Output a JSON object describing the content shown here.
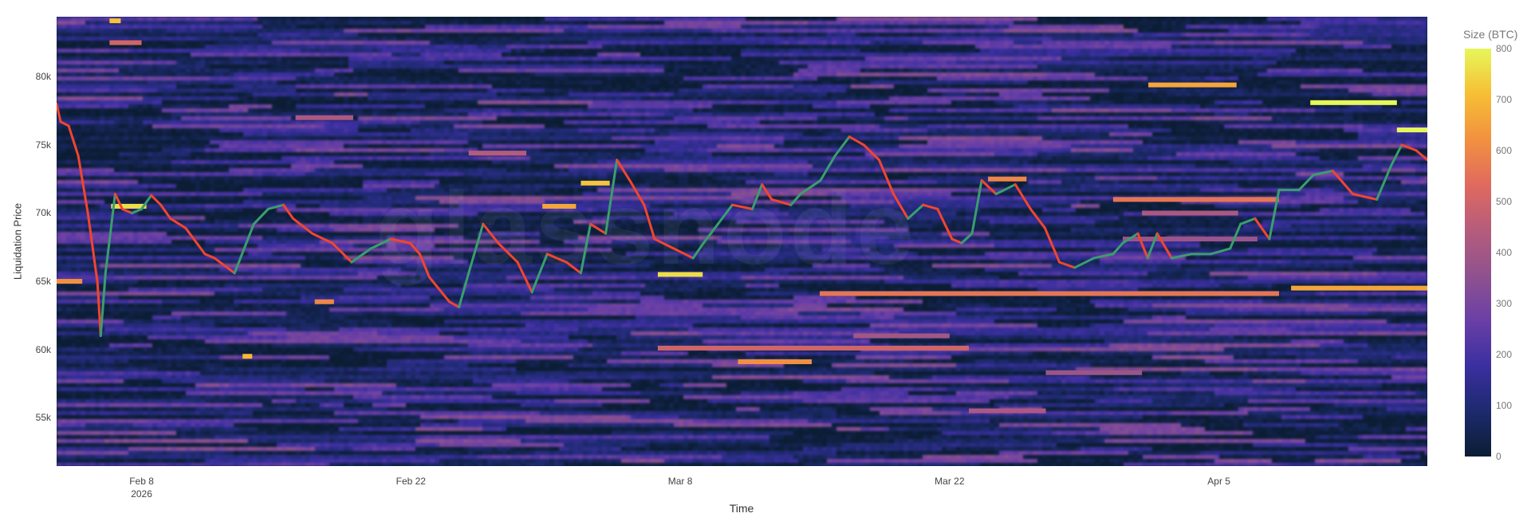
{
  "chart_data": {
    "type": "heatmap",
    "xlabel": "Time",
    "ylabel": "Liquidation Price",
    "colorbar": {
      "title": "Size (BTC)",
      "range": [
        0,
        800
      ],
      "ticks": [
        "0",
        "100",
        "200",
        "300",
        "400",
        "500",
        "600",
        "700",
        "800"
      ],
      "colors": [
        "#0b1d33",
        "#1d2a6e",
        "#3b2fa0",
        "#6a3fa6",
        "#8f528e",
        "#b65c7c",
        "#e06a5e",
        "#f2913f",
        "#f6bf35",
        "#e6f75a"
      ]
    },
    "xlim": [
      "2026-02-03T14:00:00Z",
      "2026-04-15T20:00:00Z"
    ],
    "ylim": [
      51450,
      84400
    ],
    "y_ticks": [
      {
        "value": 55000,
        "label": "55k"
      },
      {
        "value": 60000,
        "label": "60k"
      },
      {
        "value": 65000,
        "label": "65k"
      },
      {
        "value": 70000,
        "label": "70k"
      },
      {
        "value": 75000,
        "label": "75k"
      },
      {
        "value": 80000,
        "label": "80k"
      }
    ],
    "x_ticks": [
      {
        "value": "2026-02-08",
        "label": "Feb 8",
        "sublabel": "2026"
      },
      {
        "value": "2026-02-22",
        "label": "Feb 22"
      },
      {
        "value": "2026-03-08",
        "label": "Mar 8"
      },
      {
        "value": "2026-03-22",
        "label": "Mar 22"
      },
      {
        "value": "2026-04-05",
        "label": "Apr 5"
      }
    ],
    "bands": [
      {
        "price": 64100,
        "start": "2026-03-15T06:00:00Z",
        "end": "2026-04-08T03:00:00Z",
        "size": 560
      },
      {
        "price": 64500,
        "start": "2026-04-08T18:00:00Z",
        "end": "2026-04-15T20:00:00Z",
        "size": 660
      },
      {
        "price": 60100,
        "start": "2026-03-06T20:00:00Z",
        "end": "2026-03-23T00:00:00Z",
        "size": 500
      },
      {
        "price": 59100,
        "start": "2026-03-11T00:00:00Z",
        "end": "2026-03-14T20:00:00Z",
        "size": 620
      },
      {
        "price": 65500,
        "start": "2026-03-06T20:00:00Z",
        "end": "2026-03-09T04:00:00Z",
        "size": 760
      },
      {
        "price": 78100,
        "start": "2026-04-09T18:00:00Z",
        "end": "2026-04-14T06:00:00Z",
        "size": 800
      },
      {
        "price": 76100,
        "start": "2026-04-14T06:00:00Z",
        "end": "2026-04-15T20:00:00Z",
        "size": 800
      },
      {
        "price": 79400,
        "start": "2026-04-01T08:00:00Z",
        "end": "2026-04-05T22:00:00Z",
        "size": 660
      },
      {
        "price": 71000,
        "start": "2026-03-30T12:00:00Z",
        "end": "2026-04-08T03:00:00Z",
        "size": 560
      },
      {
        "price": 70000,
        "start": "2026-04-01T00:00:00Z",
        "end": "2026-04-06T00:00:00Z",
        "size": 420
      },
      {
        "price": 68100,
        "start": "2026-03-31T00:00:00Z",
        "end": "2026-04-07T00:00:00Z",
        "size": 380
      },
      {
        "price": 70500,
        "start": "2026-02-06T10:00:00Z",
        "end": "2026-02-08T06:00:00Z",
        "size": 760
      },
      {
        "price": 65000,
        "start": "2026-02-03T14:00:00Z",
        "end": "2026-02-04T22:00:00Z",
        "size": 620
      },
      {
        "price": 72200,
        "start": "2026-03-02T20:00:00Z",
        "end": "2026-03-04T08:00:00Z",
        "size": 720
      },
      {
        "price": 70500,
        "start": "2026-02-28T20:00:00Z",
        "end": "2026-03-02T14:00:00Z",
        "size": 660
      },
      {
        "price": 84100,
        "start": "2026-02-06T08:00:00Z",
        "end": "2026-02-06T22:00:00Z",
        "size": 720
      },
      {
        "price": 82500,
        "start": "2026-02-06T08:00:00Z",
        "end": "2026-02-08T00:00:00Z",
        "size": 500
      },
      {
        "price": 77000,
        "start": "2026-02-16T00:00:00Z",
        "end": "2026-02-19T00:00:00Z",
        "size": 420
      },
      {
        "price": 74400,
        "start": "2026-02-25T00:00:00Z",
        "end": "2026-02-28T00:00:00Z",
        "size": 440
      },
      {
        "price": 72500,
        "start": "2026-03-24T00:00:00Z",
        "end": "2026-03-26T00:00:00Z",
        "size": 600
      },
      {
        "price": 61000,
        "start": "2026-03-17T00:00:00Z",
        "end": "2026-03-22T00:00:00Z",
        "size": 400
      },
      {
        "price": 55500,
        "start": "2026-03-23T00:00:00Z",
        "end": "2026-03-27T00:00:00Z",
        "size": 420
      },
      {
        "price": 58300,
        "start": "2026-03-27T00:00:00Z",
        "end": "2026-04-01T00:00:00Z",
        "size": 380
      },
      {
        "price": 59500,
        "start": "2026-02-13T06:00:00Z",
        "end": "2026-02-13T18:00:00Z",
        "size": 700
      },
      {
        "price": 63500,
        "start": "2026-02-17T00:00:00Z",
        "end": "2026-02-18T00:00:00Z",
        "size": 600
      }
    ],
    "price_series": [
      [
        "2026-02-03T14:00:00Z",
        78000
      ],
      [
        "2026-02-03T19:00:00Z",
        76700
      ],
      [
        "2026-02-04T05:00:00Z",
        76400
      ],
      [
        "2026-02-04T17:00:00Z",
        74200
      ],
      [
        "2026-02-05T05:00:00Z",
        70000
      ],
      [
        "2026-02-05T17:00:00Z",
        64900
      ],
      [
        "2026-02-05T21:00:00Z",
        61000
      ],
      [
        "2026-02-06T03:00:00Z",
        65600
      ],
      [
        "2026-02-06T15:00:00Z",
        71400
      ],
      [
        "2026-02-07T00:00:00Z",
        70300
      ],
      [
        "2026-02-07T12:00:00Z",
        70000
      ],
      [
        "2026-02-08T00:00:00Z",
        70300
      ],
      [
        "2026-02-08T12:00:00Z",
        71300
      ],
      [
        "2026-02-09T00:00:00Z",
        70600
      ],
      [
        "2026-02-09T12:00:00Z",
        69600
      ],
      [
        "2026-02-10T07:00:00Z",
        68900
      ],
      [
        "2026-02-11T07:00:00Z",
        67000
      ],
      [
        "2026-02-11T19:00:00Z",
        66700
      ],
      [
        "2026-02-12T20:00:00Z",
        65600
      ],
      [
        "2026-02-13T20:00:00Z",
        69200
      ],
      [
        "2026-02-14T14:00:00Z",
        70300
      ],
      [
        "2026-02-15T09:00:00Z",
        70600
      ],
      [
        "2026-02-15T21:00:00Z",
        69600
      ],
      [
        "2026-02-16T21:00:00Z",
        68500
      ],
      [
        "2026-02-17T22:00:00Z",
        67800
      ],
      [
        "2026-02-18T22:00:00Z",
        66400
      ],
      [
        "2026-02-19T22:00:00Z",
        67400
      ],
      [
        "2026-02-20T23:00:00Z",
        68100
      ],
      [
        "2026-02-21T23:00:00Z",
        67800
      ],
      [
        "2026-02-22T11:00:00Z",
        67000
      ],
      [
        "2026-02-22T23:00:00Z",
        65300
      ],
      [
        "2026-02-24T00:00:00Z",
        63500
      ],
      [
        "2026-02-24T12:00:00Z",
        63100
      ],
      [
        "2026-02-25T00:00:00Z",
        65600
      ],
      [
        "2026-02-25T18:00:00Z",
        69200
      ],
      [
        "2026-02-26T13:00:00Z",
        67800
      ],
      [
        "2026-02-27T13:00:00Z",
        66400
      ],
      [
        "2026-02-28T07:00:00Z",
        64200
      ],
      [
        "2026-03-01T02:00:00Z",
        67000
      ],
      [
        "2026-03-02T02:00:00Z",
        66400
      ],
      [
        "2026-03-02T20:00:00Z",
        65600
      ],
      [
        "2026-03-03T08:00:00Z",
        69200
      ],
      [
        "2026-03-04T03:00:00Z",
        68500
      ],
      [
        "2026-03-04T17:00:00Z",
        73900
      ],
      [
        "2026-03-05T09:00:00Z",
        72400
      ],
      [
        "2026-03-06T03:00:00Z",
        70600
      ],
      [
        "2026-03-06T16:00:00Z",
        68100
      ],
      [
        "2026-03-07T16:00:00Z",
        67400
      ],
      [
        "2026-03-08T16:00:00Z",
        66700
      ],
      [
        "2026-03-09T05:00:00Z",
        67800
      ],
      [
        "2026-03-09T23:00:00Z",
        69200
      ],
      [
        "2026-03-10T17:00:00Z",
        70600
      ],
      [
        "2026-03-11T18:00:00Z",
        70300
      ],
      [
        "2026-03-12T06:00:00Z",
        72100
      ],
      [
        "2026-03-12T18:00:00Z",
        71000
      ],
      [
        "2026-03-13T18:00:00Z",
        70600
      ],
      [
        "2026-03-14T06:00:00Z",
        71400
      ],
      [
        "2026-03-15T07:00:00Z",
        72400
      ],
      [
        "2026-03-16T01:00:00Z",
        74200
      ],
      [
        "2026-03-16T19:00:00Z",
        75600
      ],
      [
        "2026-03-17T13:00:00Z",
        75000
      ],
      [
        "2026-03-18T08:00:00Z",
        73900
      ],
      [
        "2026-03-19T02:00:00Z",
        71400
      ],
      [
        "2026-03-19T20:00:00Z",
        69600
      ],
      [
        "2026-03-20T15:00:00Z",
        70600
      ],
      [
        "2026-03-21T09:00:00Z",
        70300
      ],
      [
        "2026-03-22T03:00:00Z",
        68100
      ],
      [
        "2026-03-22T15:00:00Z",
        67800
      ],
      [
        "2026-03-23T04:00:00Z",
        68500
      ],
      [
        "2026-03-23T16:00:00Z",
        72400
      ],
      [
        "2026-03-24T10:00:00Z",
        71400
      ],
      [
        "2026-03-25T10:00:00Z",
        72100
      ],
      [
        "2026-03-26T05:00:00Z",
        70300
      ],
      [
        "2026-03-26T23:00:00Z",
        68900
      ],
      [
        "2026-03-27T17:00:00Z",
        66400
      ],
      [
        "2026-03-28T12:00:00Z",
        66000
      ],
      [
        "2026-03-29T12:00:00Z",
        66700
      ],
      [
        "2026-03-30T12:00:00Z",
        67000
      ],
      [
        "2026-03-31T00:00:00Z",
        67800
      ],
      [
        "2026-03-31T19:00:00Z",
        68500
      ],
      [
        "2026-04-01T07:00:00Z",
        66700
      ],
      [
        "2026-04-01T19:00:00Z",
        68500
      ],
      [
        "2026-04-02T13:00:00Z",
        66700
      ],
      [
        "2026-04-03T14:00:00Z",
        67000
      ],
      [
        "2026-04-04T14:00:00Z",
        67000
      ],
      [
        "2026-04-05T14:00:00Z",
        67400
      ],
      [
        "2026-04-06T03:00:00Z",
        69200
      ],
      [
        "2026-04-06T21:00:00Z",
        69600
      ],
      [
        "2026-04-07T15:00:00Z",
        68100
      ],
      [
        "2026-04-08T03:00:00Z",
        71700
      ],
      [
        "2026-04-09T04:00:00Z",
        71700
      ],
      [
        "2026-04-09T22:00:00Z",
        72800
      ],
      [
        "2026-04-10T22:00:00Z",
        73100
      ],
      [
        "2026-04-11T23:00:00Z",
        71400
      ],
      [
        "2026-04-13T05:00:00Z",
        71000
      ],
      [
        "2026-04-13T23:00:00Z",
        73500
      ],
      [
        "2026-04-14T12:00:00Z",
        75000
      ],
      [
        "2026-04-15T06:00:00Z",
        74600
      ],
      [
        "2026-04-15T20:00:00Z",
        73900
      ]
    ],
    "up_color": "#3a9e6e",
    "down_color": "#f2452e",
    "watermark": "glassnode"
  }
}
